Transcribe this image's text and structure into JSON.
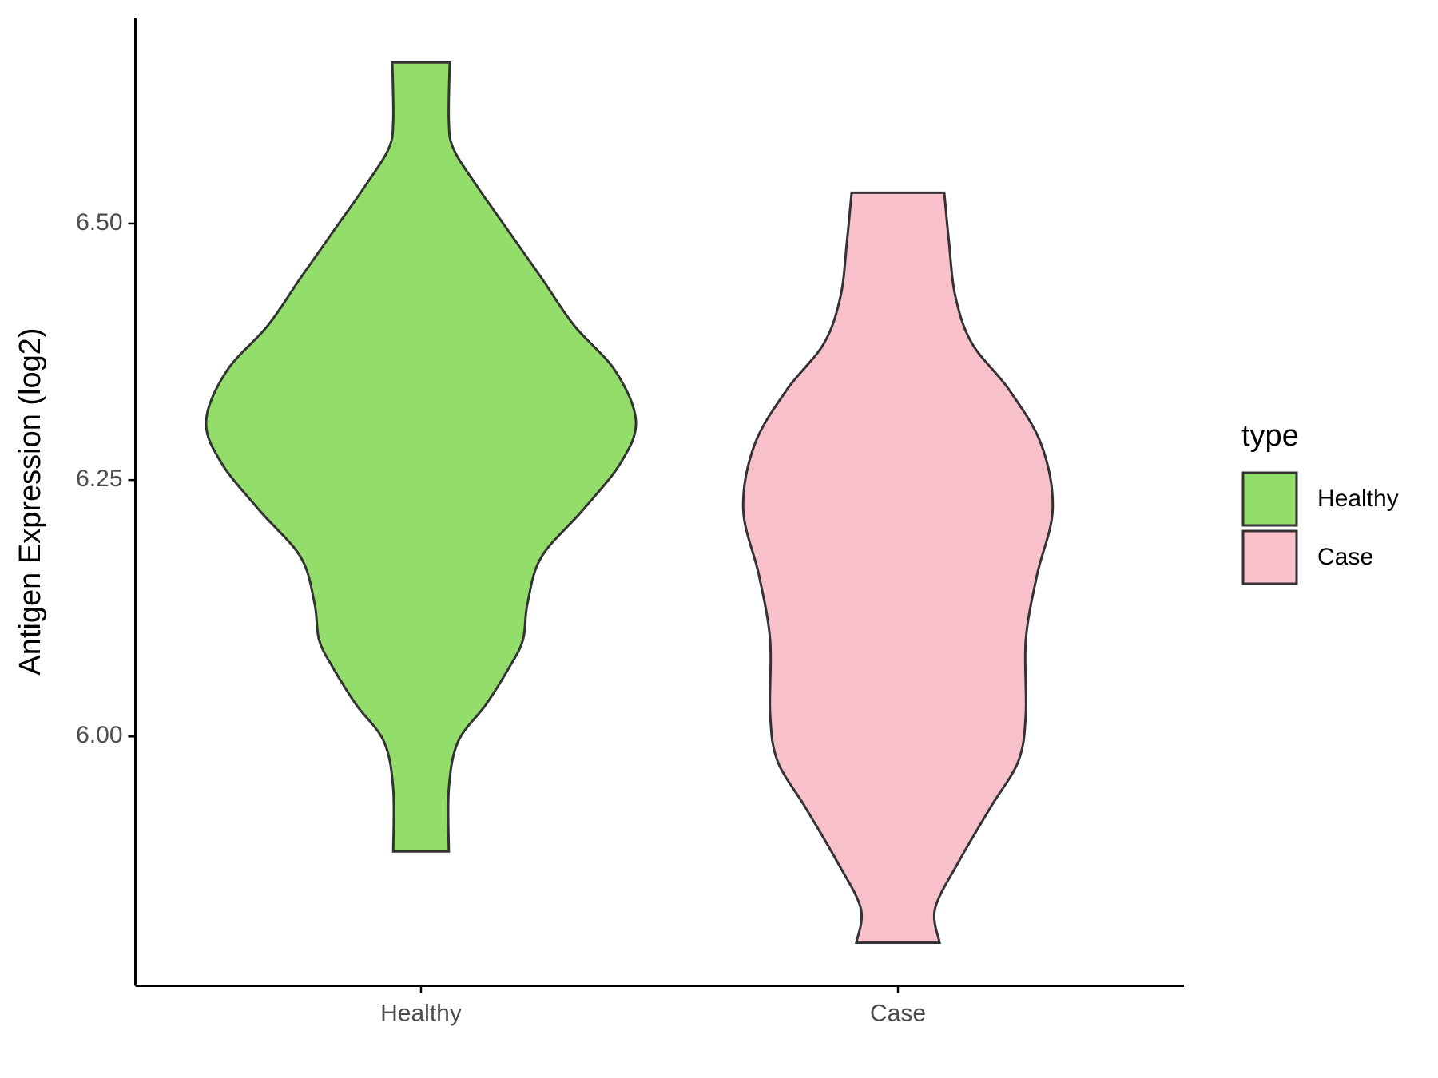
{
  "chart_data": {
    "type": "violin",
    "y_label": "Antigen Expression (log2)",
    "legend_title": "type",
    "legend": "right",
    "categories": [
      "Healthy",
      "Case"
    ],
    "ylim": [
      5.757,
      6.7
    ],
    "yticks": [
      {
        "value": 6,
        "label": "6.00"
      },
      {
        "value": 6.25,
        "label": "6.25"
      },
      {
        "value": 6.5,
        "label": "6.50"
      }
    ],
    "series": [
      {
        "name": "Healthy",
        "color": "#93dd6a",
        "y": [
          6.657,
          6.6,
          6.573,
          6.537,
          6.492,
          6.447,
          6.401,
          6.356,
          6.307,
          6.266,
          6.221,
          6.175,
          6.13,
          6.094,
          6.067,
          6.031,
          5.995,
          5.949,
          5.888
        ],
        "density": [
          31,
          30,
          35,
          60,
          95,
          130,
          165,
          210,
          232,
          215,
          175,
          130,
          115,
          110,
          95,
          70,
          40,
          30,
          30
        ]
      },
      {
        "name": "Case",
        "color": "#f8c0cb",
        "y": [
          6.53,
          6.483,
          6.429,
          6.383,
          6.338,
          6.284,
          6.221,
          6.157,
          6.094,
          6.022,
          5.976,
          5.931,
          5.877,
          5.832,
          5.799
        ],
        "density": [
          50,
          55,
          62,
          80,
          120,
          155,
          167,
          150,
          138,
          138,
          130,
          100,
          65,
          40,
          45
        ]
      }
    ]
  }
}
